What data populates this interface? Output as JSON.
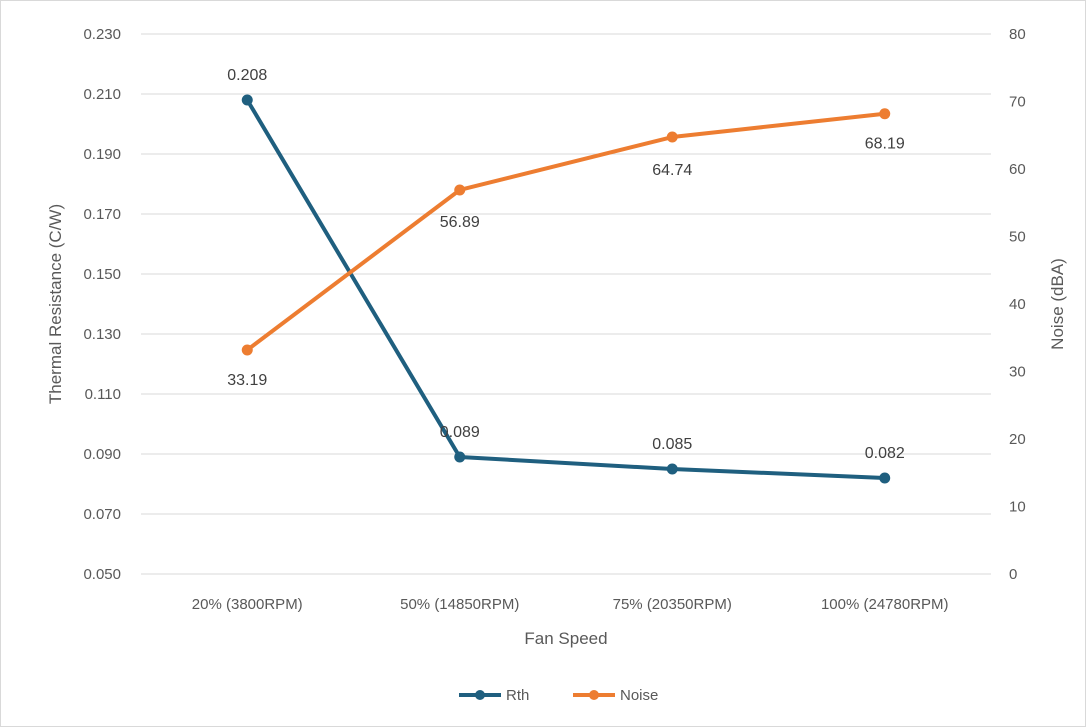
{
  "chart_data": {
    "type": "line",
    "title": "",
    "xlabel": "Fan Speed",
    "ylabel": "Thermal Resistance (C/W)",
    "y2label": "Noise (dBA)",
    "categories": [
      "20% (3800RPM)",
      "50% (14850RPM)",
      "75% (20350RPM)",
      "100% (24780RPM)"
    ],
    "ylim": [
      0.05,
      0.23
    ],
    "y_ticks": [
      "0.230",
      "0.210",
      "0.190",
      "0.170",
      "0.150",
      "0.130",
      "0.110",
      "0.090",
      "0.070",
      "0.050"
    ],
    "y2lim": [
      0,
      80
    ],
    "y2_ticks": [
      "80",
      "70",
      "60",
      "50",
      "40",
      "30",
      "20",
      "10",
      "0"
    ],
    "grid": true,
    "legend_position": "bottom",
    "series": [
      {
        "name": "Rth",
        "axis": "left",
        "color": "#1f5f7f",
        "values": [
          0.208,
          0.089,
          0.085,
          0.082
        ],
        "labels": [
          "0.208",
          "0.089",
          "0.085",
          "0.082"
        ]
      },
      {
        "name": "Noise",
        "axis": "right",
        "color": "#ed7d31",
        "values": [
          33.19,
          56.89,
          64.74,
          68.19
        ],
        "labels": [
          "33.19",
          "56.89",
          "64.74",
          "68.19"
        ]
      }
    ]
  }
}
